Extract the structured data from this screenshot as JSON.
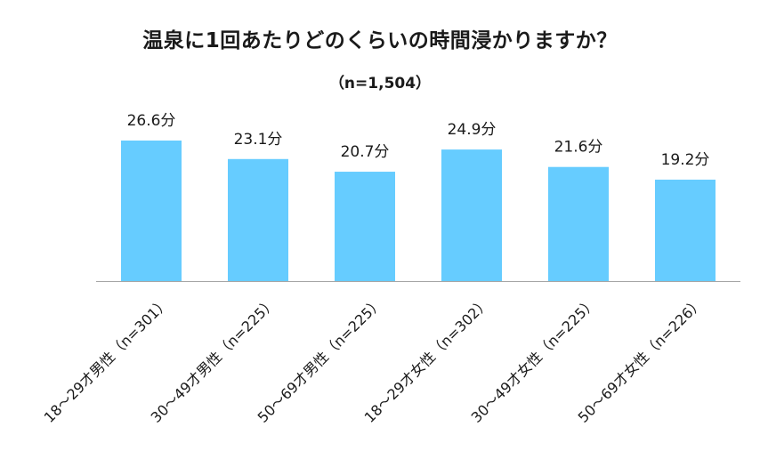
{
  "chart_data": {
    "type": "bar",
    "title": "温泉に1回あたりどのくらいの時間浸かりますか？",
    "subtitle": "（n=1,504）",
    "categories": [
      "18～29才男性（n=301）",
      "30～49才男性（n=225）",
      "50～69才男性（n=225）",
      "18～29才女性（n=302）",
      "30～49才女性（n=225）",
      "50～69才女性（n=226）"
    ],
    "values": [
      26.6,
      23.1,
      20.7,
      24.9,
      21.6,
      19.2
    ],
    "value_unit": "分",
    "xlabel": "",
    "ylabel": "",
    "ylim": [
      0,
      30
    ],
    "grid": false,
    "legend": "none",
    "bar_color": "#66ccff",
    "axis_color": "#a6a6a6"
  }
}
